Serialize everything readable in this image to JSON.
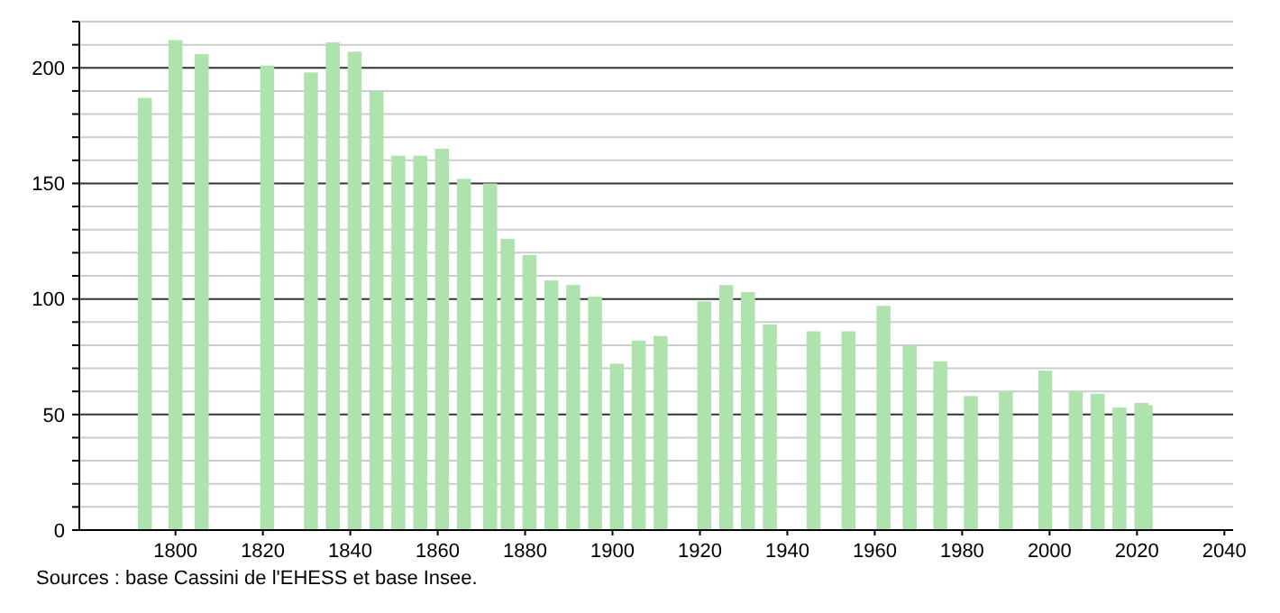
{
  "chart_data": {
    "type": "bar",
    "x": [
      1793,
      1800,
      1806,
      1821,
      1831,
      1836,
      1841,
      1846,
      1851,
      1856,
      1861,
      1866,
      1872,
      1876,
      1881,
      1886,
      1891,
      1896,
      1901,
      1906,
      1911,
      1921,
      1926,
      1931,
      1936,
      1946,
      1954,
      1962,
      1968,
      1975,
      1982,
      1990,
      1999,
      2006,
      2011,
      2016,
      2021,
      2022
    ],
    "values": [
      187,
      212,
      206,
      201,
      198,
      211,
      207,
      190,
      162,
      162,
      165,
      152,
      150,
      126,
      119,
      108,
      106,
      101,
      72,
      82,
      84,
      99,
      106,
      103,
      89,
      86,
      86,
      97,
      80,
      73,
      58,
      60,
      69,
      60,
      59,
      53,
      55,
      54
    ],
    "color": "#aee3ae",
    "xlim": [
      1778,
      2042
    ],
    "xticks": [
      1800,
      1820,
      1840,
      1860,
      1880,
      1900,
      1920,
      1940,
      1960,
      1980,
      2000,
      2020,
      2040
    ],
    "ylim": [
      0,
      220
    ],
    "yticks": [
      0,
      {
        "value": 10,
        "label": null
      },
      {
        "value": 20,
        "label": null
      },
      {
        "value": 30,
        "label": null
      },
      {
        "value": 40,
        "label": null
      },
      50,
      {
        "value": 60,
        "label": null
      },
      {
        "value": 70,
        "label": null
      },
      {
        "value": 80,
        "label": null
      },
      {
        "value": 90,
        "label": null
      },
      100,
      {
        "value": 110,
        "label": null
      },
      {
        "value": 120,
        "label": null
      },
      {
        "value": 130,
        "label": null
      },
      {
        "value": 140,
        "label": null
      },
      150,
      {
        "value": 160,
        "label": null
      },
      {
        "value": 170,
        "label": null
      },
      {
        "value": 180,
        "label": null
      },
      {
        "value": 190,
        "label": null
      },
      200,
      {
        "value": 210,
        "label": null
      },
      {
        "value": 220,
        "label": null
      }
    ],
    "grid": "y",
    "annotations": [
      "Sources : base Cassini de l'EHESS et base Insee."
    ]
  }
}
